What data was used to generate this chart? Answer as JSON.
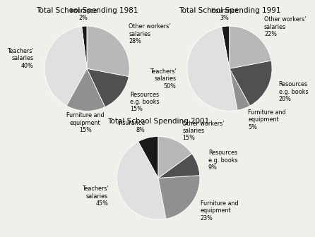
{
  "charts": [
    {
      "title": "Total School Spending 1981",
      "values": [
        2,
        40,
        15,
        15,
        28
      ],
      "colors": [
        "#1a1a1a",
        "#e0e0e0",
        "#909090",
        "#505050",
        "#b8b8b8"
      ],
      "labels": [
        "Insurance\n2%",
        "Teachers'\nsalaries\n40%",
        "Furniture and\nequipment\n15%",
        "Resources\ne.g. books\n15%",
        "Other workers'\nsalaries\n28%"
      ],
      "startangle": 90,
      "label_distances": [
        1.28,
        1.28,
        1.28,
        1.28,
        1.28
      ]
    },
    {
      "title": "Total School Spending 1991",
      "values": [
        3,
        50,
        5,
        20,
        22
      ],
      "colors": [
        "#1a1a1a",
        "#e0e0e0",
        "#909090",
        "#505050",
        "#b8b8b8"
      ],
      "labels": [
        "Insurance\n3%",
        "Teachers'\nsalaries\n50%",
        "Furniture and\nequipment\n5%",
        "Resources\ne.g. books\n20%",
        "Other workers'\nsalaries\n22%"
      ],
      "startangle": 90,
      "label_distances": [
        1.28,
        1.28,
        1.28,
        1.28,
        1.28
      ]
    },
    {
      "title": "Total School Spending 2001",
      "values": [
        8,
        45,
        23,
        9,
        15
      ],
      "colors": [
        "#1a1a1a",
        "#e0e0e0",
        "#909090",
        "#505050",
        "#b8b8b8"
      ],
      "labels": [
        "Insurance\n8%",
        "Teachers'\nsalaries\n45%",
        "Furniture and\nequipment\n23%",
        "Resources\ne.g. books\n9%",
        "Other workers'\nsalaries\n15%"
      ],
      "startangle": 90,
      "label_distances": [
        1.28,
        1.28,
        1.28,
        1.28,
        1.28
      ]
    }
  ],
  "bg_color": "#f0f0eb",
  "title_fontsize": 7.5,
  "label_fontsize": 5.8
}
